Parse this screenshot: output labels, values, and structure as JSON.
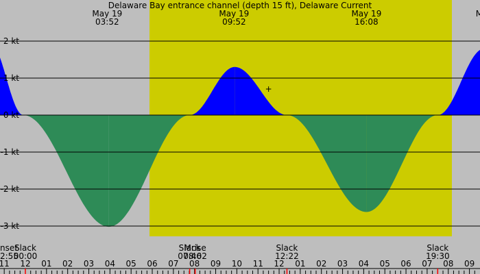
{
  "chart_data": {
    "type": "area",
    "title": "Delaware Bay entrance channel (depth 15 ft), Delaware Current",
    "colors": {
      "background": "#bebebe",
      "daylight": "#cccc00",
      "flood": "#0000ff",
      "ebb": "#2e8b57",
      "gridline": "#000000",
      "event_tick": "#ff0000"
    },
    "ylim": [
      -3.3,
      2.2
    ],
    "y_ticks": [
      {
        "value": 2,
        "label": "2 kt"
      },
      {
        "value": 1,
        "label": "1 kt"
      },
      {
        "value": 0,
        "label": "0 kt"
      },
      {
        "value": -1,
        "label": "-1 kt"
      },
      {
        "value": -2,
        "label": "-2 kt"
      },
      {
        "value": -3,
        "label": "-3 kt"
      }
    ],
    "x_hours": [
      {
        "hour": 11,
        "label": "11"
      },
      {
        "hour": 12,
        "label": "12"
      },
      {
        "hour": 13,
        "label": "01"
      },
      {
        "hour": 14,
        "label": "02"
      },
      {
        "hour": 15,
        "label": "03"
      },
      {
        "hour": 16,
        "label": "04"
      },
      {
        "hour": 17,
        "label": "05"
      },
      {
        "hour": 18,
        "label": "06"
      },
      {
        "hour": 19,
        "label": "07"
      },
      {
        "hour": 20,
        "label": "08"
      },
      {
        "hour": 21,
        "label": "09"
      },
      {
        "hour": 22,
        "label": "10"
      },
      {
        "hour": 23,
        "label": "11"
      },
      {
        "hour": 24,
        "label": "12"
      },
      {
        "hour": 25,
        "label": "01"
      },
      {
        "hour": 26,
        "label": "02"
      },
      {
        "hour": 27,
        "label": "03"
      },
      {
        "hour": 28,
        "label": "04"
      },
      {
        "hour": 29,
        "label": "05"
      },
      {
        "hour": 30,
        "label": "06"
      },
      {
        "hour": 31,
        "label": "07"
      },
      {
        "hour": 32,
        "label": "08"
      },
      {
        "hour": 33,
        "label": "09"
      }
    ],
    "xlim": [
      10.8,
      33.5
    ],
    "daylight_hours": [
      17.87,
      32.17
    ],
    "current_extrema": [
      {
        "hour": 10.3,
        "speed": 2.0
      },
      {
        "hour": 11.9,
        "speed": 0
      },
      {
        "hour": 15.95,
        "speed": -3.02
      },
      {
        "hour": 19.77,
        "speed": 0
      },
      {
        "hour": 21.9,
        "speed": 1.3
      },
      {
        "hour": 24.37,
        "speed": 0
      },
      {
        "hour": 28.13,
        "speed": -2.62
      },
      {
        "hour": 31.5,
        "speed": 0
      },
      {
        "hour": 33.7,
        "speed": 1.8
      }
    ],
    "top_labels": [
      {
        "hour": 15.87,
        "date": "May 19",
        "time": "03:52"
      },
      {
        "hour": 21.87,
        "date": "May 19",
        "time": "09:52"
      },
      {
        "hour": 28.13,
        "date": "May 19",
        "time": "16:08"
      },
      {
        "hour": 33.7,
        "date": "May",
        "time": ""
      }
    ],
    "bottom_events": [
      {
        "hour": 10.8,
        "event": "nset",
        "time": "2:55",
        "tick": false
      },
      {
        "hour": 12.0,
        "event": "Slack",
        "time": "00:00",
        "tick": true
      },
      {
        "hour": 19.77,
        "event": "Slack",
        "time": "07:46",
        "tick": true
      },
      {
        "hour": 20.03,
        "event": "Mrise",
        "time": "08:02",
        "tick": true
      },
      {
        "hour": 24.37,
        "event": "Slack",
        "time": "12:22",
        "tick": true
      },
      {
        "hour": 31.5,
        "event": "Slack",
        "time": "19:30",
        "tick": true
      }
    ],
    "marker": {
      "hour": 23.5,
      "speed": 0.7,
      "symbol": "+"
    }
  }
}
